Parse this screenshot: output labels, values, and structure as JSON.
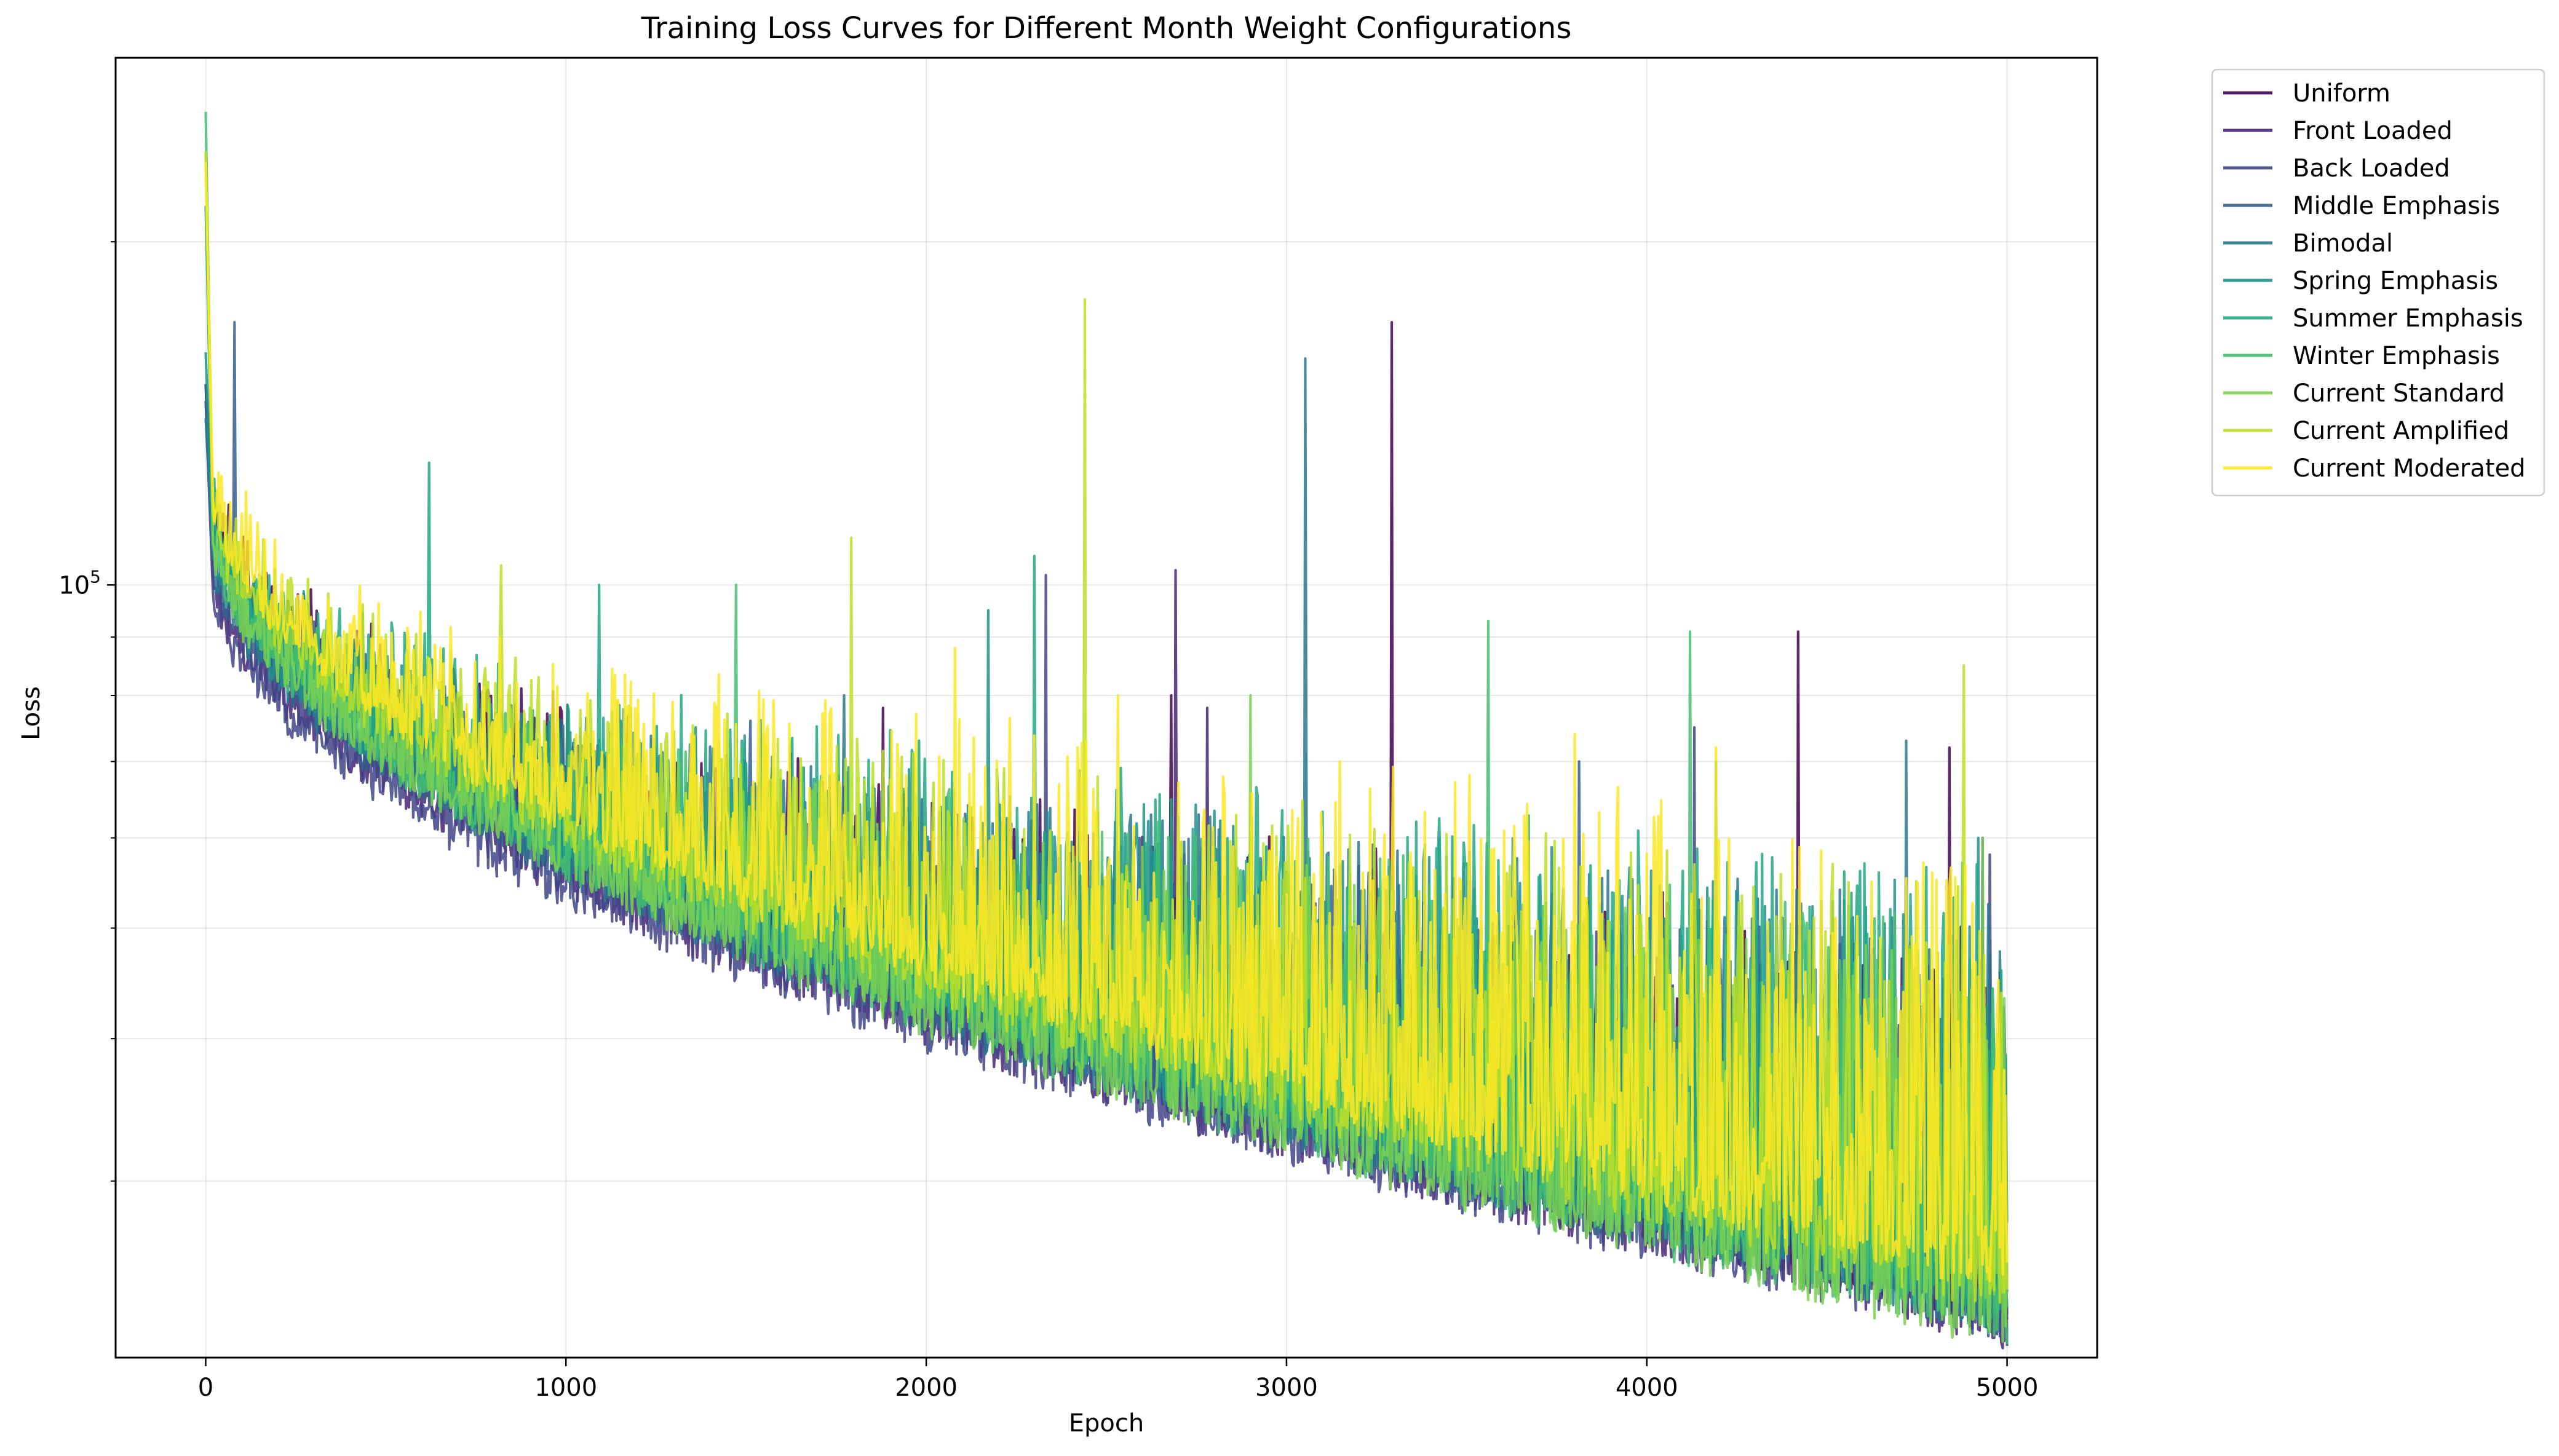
{
  "chart_data": {
    "type": "line",
    "title": "Training Loss Curves for Different Month Weight Configurations",
    "xlabel": "Epoch",
    "ylabel": "Loss",
    "x_scale": "linear",
    "y_scale": "log",
    "xlim": [
      -250,
      5250
    ],
    "ylim": [
      21000,
      290000
    ],
    "x_ticks": [
      0,
      1000,
      2000,
      3000,
      4000,
      5000
    ],
    "x_tick_labels": [
      "0",
      "1000",
      "2000",
      "3000",
      "4000",
      "5000"
    ],
    "y_major_ticks": [
      100000
    ],
    "y_major_tick_labels": [
      "10^5"
    ],
    "y_minor_ticks": [
      30000,
      40000,
      50000,
      60000,
      70000,
      80000,
      90000,
      200000
    ],
    "grid": true,
    "legend_position": "outside-right-top",
    "series": [
      {
        "name": "Uniform",
        "color": "#440154",
        "start": 150000,
        "knee": 68000,
        "final": 22500,
        "spike_level": 0.4,
        "spikes": [
          [
            3290,
            170000
          ],
          [
            4420,
            91000
          ],
          [
            4840,
            72000
          ],
          [
            1880,
            78000
          ],
          [
            2680,
            80000
          ]
        ]
      },
      {
        "name": "Front Loaded",
        "color": "#482475",
        "start": 150000,
        "knee": 60000,
        "final": 22000,
        "spike_level": 0.3,
        "spikes": [
          [
            2690,
            103000
          ],
          [
            2780,
            78000
          ],
          [
            4930,
            60000
          ]
        ]
      },
      {
        "name": "Back Loaded",
        "color": "#414487",
        "start": 145000,
        "knee": 58000,
        "final": 22000,
        "spike_level": 0.35,
        "spikes": [
          [
            2330,
            102000
          ],
          [
            4950,
            58000
          ],
          [
            4130,
            75000
          ]
        ]
      },
      {
        "name": "Middle Emphasis",
        "color": "#355f8d",
        "start": 150000,
        "knee": 62000,
        "final": 22500,
        "spike_level": 0.4,
        "spikes": [
          [
            80,
            170000
          ],
          [
            1510,
            76000
          ],
          [
            3810,
            70000
          ]
        ]
      },
      {
        "name": "Bimodal",
        "color": "#2a788e",
        "start": 140000,
        "knee": 62000,
        "final": 22500,
        "spike_level": 0.45,
        "spikes": [
          [
            3050,
            158000
          ],
          [
            1770,
            80000
          ],
          [
            4720,
            73000
          ]
        ]
      },
      {
        "name": "Spring Emphasis",
        "color": "#21918c",
        "start": 160000,
        "knee": 63000,
        "final": 23000,
        "spike_level": 0.45,
        "spikes": [
          [
            2170,
            95000
          ],
          [
            1360,
            75000
          ],
          [
            4920,
            60000
          ]
        ]
      },
      {
        "name": "Summer Emphasis",
        "color": "#22a884",
        "start": 215000,
        "knee": 66000,
        "final": 23000,
        "spike_level": 0.5,
        "spikes": [
          [
            1090,
            100000
          ],
          [
            2300,
            106000
          ],
          [
            620,
            128000
          ],
          [
            4190,
            70000
          ]
        ]
      },
      {
        "name": "Winter Emphasis",
        "color": "#44bf70",
        "start": 260000,
        "knee": 64000,
        "final": 22000,
        "spike_level": 0.45,
        "spikes": [
          [
            1470,
            100000
          ],
          [
            3560,
            93000
          ],
          [
            4120,
            91000
          ]
        ]
      },
      {
        "name": "Current Standard",
        "color": "#7ad151",
        "start": 240000,
        "knee": 64000,
        "final": 21800,
        "spike_level": 0.4,
        "spikes": [
          [
            2900,
            80000
          ],
          [
            4930,
            60000
          ]
        ]
      },
      {
        "name": "Current Amplified",
        "color": "#bddf26",
        "start": 240000,
        "knee": 68000,
        "final": 23500,
        "spike_level": 0.45,
        "spikes": [
          [
            2440,
            178000
          ],
          [
            1790,
            110000
          ],
          [
            820,
            104000
          ],
          [
            4880,
            85000
          ]
        ]
      },
      {
        "name": "Current Moderated",
        "color": "#fde725",
        "start": 235000,
        "knee": 70000,
        "final": 24500,
        "spike_level": 0.5,
        "spikes": [
          [
            2080,
            88000
          ],
          [
            2530,
            80000
          ],
          [
            3800,
            74000
          ],
          [
            4190,
            72000
          ]
        ]
      }
    ]
  }
}
